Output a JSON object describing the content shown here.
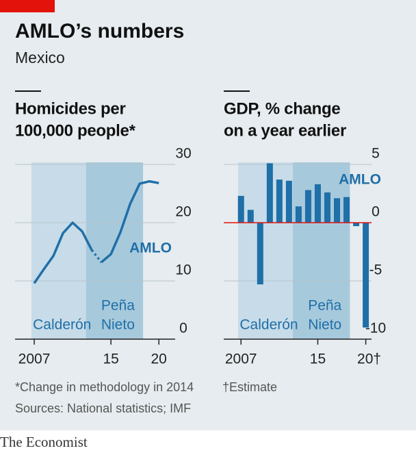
{
  "header": {
    "title": "AMLO’s numbers",
    "subtitle": "Mexico"
  },
  "chart_data": [
    {
      "type": "line",
      "title": [
        "Homicides per",
        "100,000 people*"
      ],
      "series": [
        {
          "x": [
            2007,
            2008,
            2009,
            2010,
            2011,
            2012,
            2013
          ],
          "values": [
            9.6,
            12,
            14.3,
            18.2,
            20,
            18.5,
            15.3
          ],
          "color": "#1f6fa8"
        },
        {
          "x": [
            2014,
            2015,
            2016,
            2017,
            2018,
            2019,
            2020
          ],
          "values": [
            13.2,
            14.6,
            18.4,
            23.2,
            26.7,
            27.1,
            26.8
          ],
          "color": "#1f6fa8"
        }
      ],
      "xlim": [
        2005,
        2021.7
      ],
      "xticks": [
        2007,
        {
          "value": 2015,
          "label": "15"
        },
        {
          "value": 2020,
          "label": "20"
        }
      ],
      "ylim": [
        0,
        30
      ],
      "yticks": [
        0,
        10,
        20,
        30
      ],
      "grid": true,
      "periods": [
        {
          "label": "Calderón",
          "start": 2006.7,
          "end": 2012.4,
          "color": "#c7dce8"
        },
        {
          "label": [
            "Peña",
            "Nieto"
          ],
          "start": 2012.4,
          "end": 2018.35,
          "color": "#a7c9dc"
        },
        {
          "label": "AMLO",
          "start": 2018.35
        }
      ],
      "footnote": "*Change in methodology in 2014"
    },
    {
      "type": "bar",
      "title": [
        "GDP, % change",
        "on a year earlier"
      ],
      "x": [
        2007,
        2008,
        2009,
        2010,
        2011,
        2012,
        2013,
        2014,
        2015,
        2016,
        2017,
        2018,
        2019,
        2020
      ],
      "values": [
        2.3,
        1.1,
        -5.3,
        5.1,
        3.7,
        3.6,
        1.4,
        2.8,
        3.3,
        2.6,
        2.1,
        2.2,
        -0.3,
        -9.0
      ],
      "color": "#1f6fa8",
      "xlim": [
        2005.2,
        2020.6
      ],
      "xticks": [
        2007,
        {
          "value": 2015,
          "label": "15"
        },
        {
          "value": 2020,
          "label": "20†"
        }
      ],
      "ylim": [
        -10,
        5
      ],
      "yticks": [
        -10,
        -5,
        0,
        5
      ],
      "grid": true,
      "zero_line_color": "#e3120b",
      "periods": [
        {
          "label": "Calderón",
          "start": 2006.7,
          "end": 2012.4,
          "color": "#c7dce8"
        },
        {
          "label": [
            "Peña",
            "Nieto"
          ],
          "start": 2012.4,
          "end": 2018.35,
          "color": "#a7c9dc"
        },
        {
          "label": "AMLO",
          "start": 2018.35
        }
      ],
      "footnote": "†Estimate"
    }
  ],
  "source": "Sources: National statistics; IMF",
  "brand": "The Economist"
}
